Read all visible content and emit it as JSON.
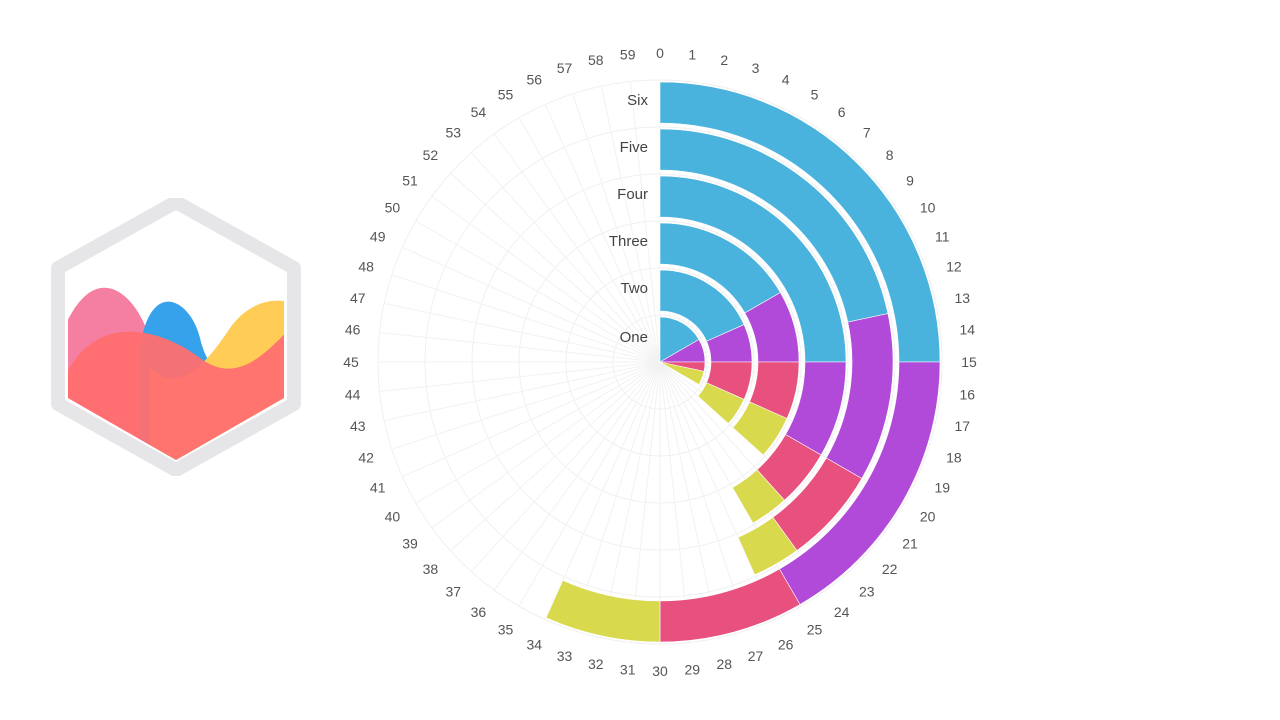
{
  "chart_data": {
    "type": "radial-stacked-bar",
    "title": "",
    "ticks": [
      "0",
      "1",
      "2",
      "3",
      "4",
      "5",
      "6",
      "7",
      "8",
      "9",
      "10",
      "11",
      "12",
      "13",
      "14",
      "15",
      "16",
      "17",
      "18",
      "19",
      "20",
      "21",
      "22",
      "23",
      "24",
      "25",
      "26",
      "27",
      "28",
      "29",
      "30",
      "31",
      "32",
      "33",
      "34",
      "35",
      "36",
      "37",
      "38",
      "39",
      "40",
      "41",
      "42",
      "43",
      "44",
      "45",
      "46",
      "47",
      "48",
      "49",
      "50",
      "51",
      "52",
      "53",
      "54",
      "55",
      "56",
      "57",
      "58",
      "59"
    ],
    "scale_max": 60,
    "categories": [
      "One",
      "Two",
      "Three",
      "Four",
      "Five",
      "Six"
    ],
    "series": [
      {
        "color": "#4ab3dd",
        "values": [
          10,
          11,
          10,
          15,
          13,
          15
        ]
      },
      {
        "color": "#b14ad8",
        "values": [
          5,
          4,
          5,
          5,
          7,
          10
        ]
      },
      {
        "color": "#e8507e",
        "values": [
          2,
          4,
          4,
          3,
          4,
          5
        ]
      },
      {
        "color": "#d9d94e",
        "values": [
          3,
          3,
          3,
          2,
          2,
          4
        ]
      }
    ],
    "grid": true,
    "legend": "none"
  },
  "logo": {
    "name": "chartjs-logo-icon"
  }
}
